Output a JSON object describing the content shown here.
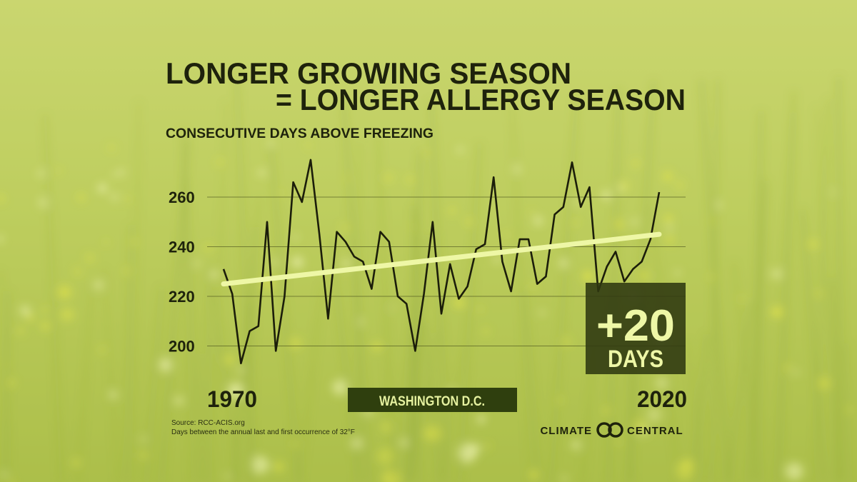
{
  "chart_data": {
    "type": "line",
    "title_lines": [
      "LONGER GROWING SEASON",
      "= LONGER ALLERGY SEASON"
    ],
    "subtitle": "CONSECUTIVE DAYS ABOVE FREEZING",
    "x": [
      1970,
      1971,
      1972,
      1973,
      1974,
      1975,
      1976,
      1977,
      1978,
      1979,
      1980,
      1981,
      1982,
      1983,
      1984,
      1985,
      1986,
      1987,
      1988,
      1989,
      1990,
      1991,
      1992,
      1993,
      1994,
      1995,
      1996,
      1997,
      1998,
      1999,
      2000,
      2001,
      2002,
      2003,
      2004,
      2005,
      2006,
      2007,
      2008,
      2009,
      2010,
      2011,
      2012,
      2013,
      2014,
      2015,
      2016,
      2017,
      2018,
      2019,
      2020
    ],
    "series": [
      {
        "color": "#1b1d0a",
        "values": [
          231,
          221,
          193,
          206,
          208,
          250,
          198,
          220,
          266,
          258,
          275,
          245,
          211,
          246,
          242,
          236,
          234,
          223,
          246,
          242,
          220,
          217,
          198,
          221,
          250,
          213,
          233,
          219,
          224,
          239,
          241,
          268,
          234,
          222,
          243,
          243,
          225,
          228,
          253,
          256,
          274,
          256,
          264,
          222,
          232,
          238,
          226,
          231,
          234,
          243,
          262
        ]
      }
    ],
    "trend": {
      "x": [
        1970,
        2020
      ],
      "values": [
        225,
        245
      ],
      "color": "#eef7a6"
    },
    "xlim": [
      1970,
      2020
    ],
    "xticks": [
      1970,
      2020
    ],
    "ylim": [
      190,
      280
    ],
    "yticks": [
      200,
      220,
      240,
      260
    ],
    "grid": true,
    "annotation": {
      "change": "+20",
      "unit": "DAYS"
    },
    "location": "WASHINGTON D.C.",
    "source_lines": [
      "Source: RCC-ACIS.org",
      "Days between the annual last and first occurrence of 32°F"
    ],
    "logo": [
      "CLIMATE",
      "CENTRAL"
    ]
  }
}
